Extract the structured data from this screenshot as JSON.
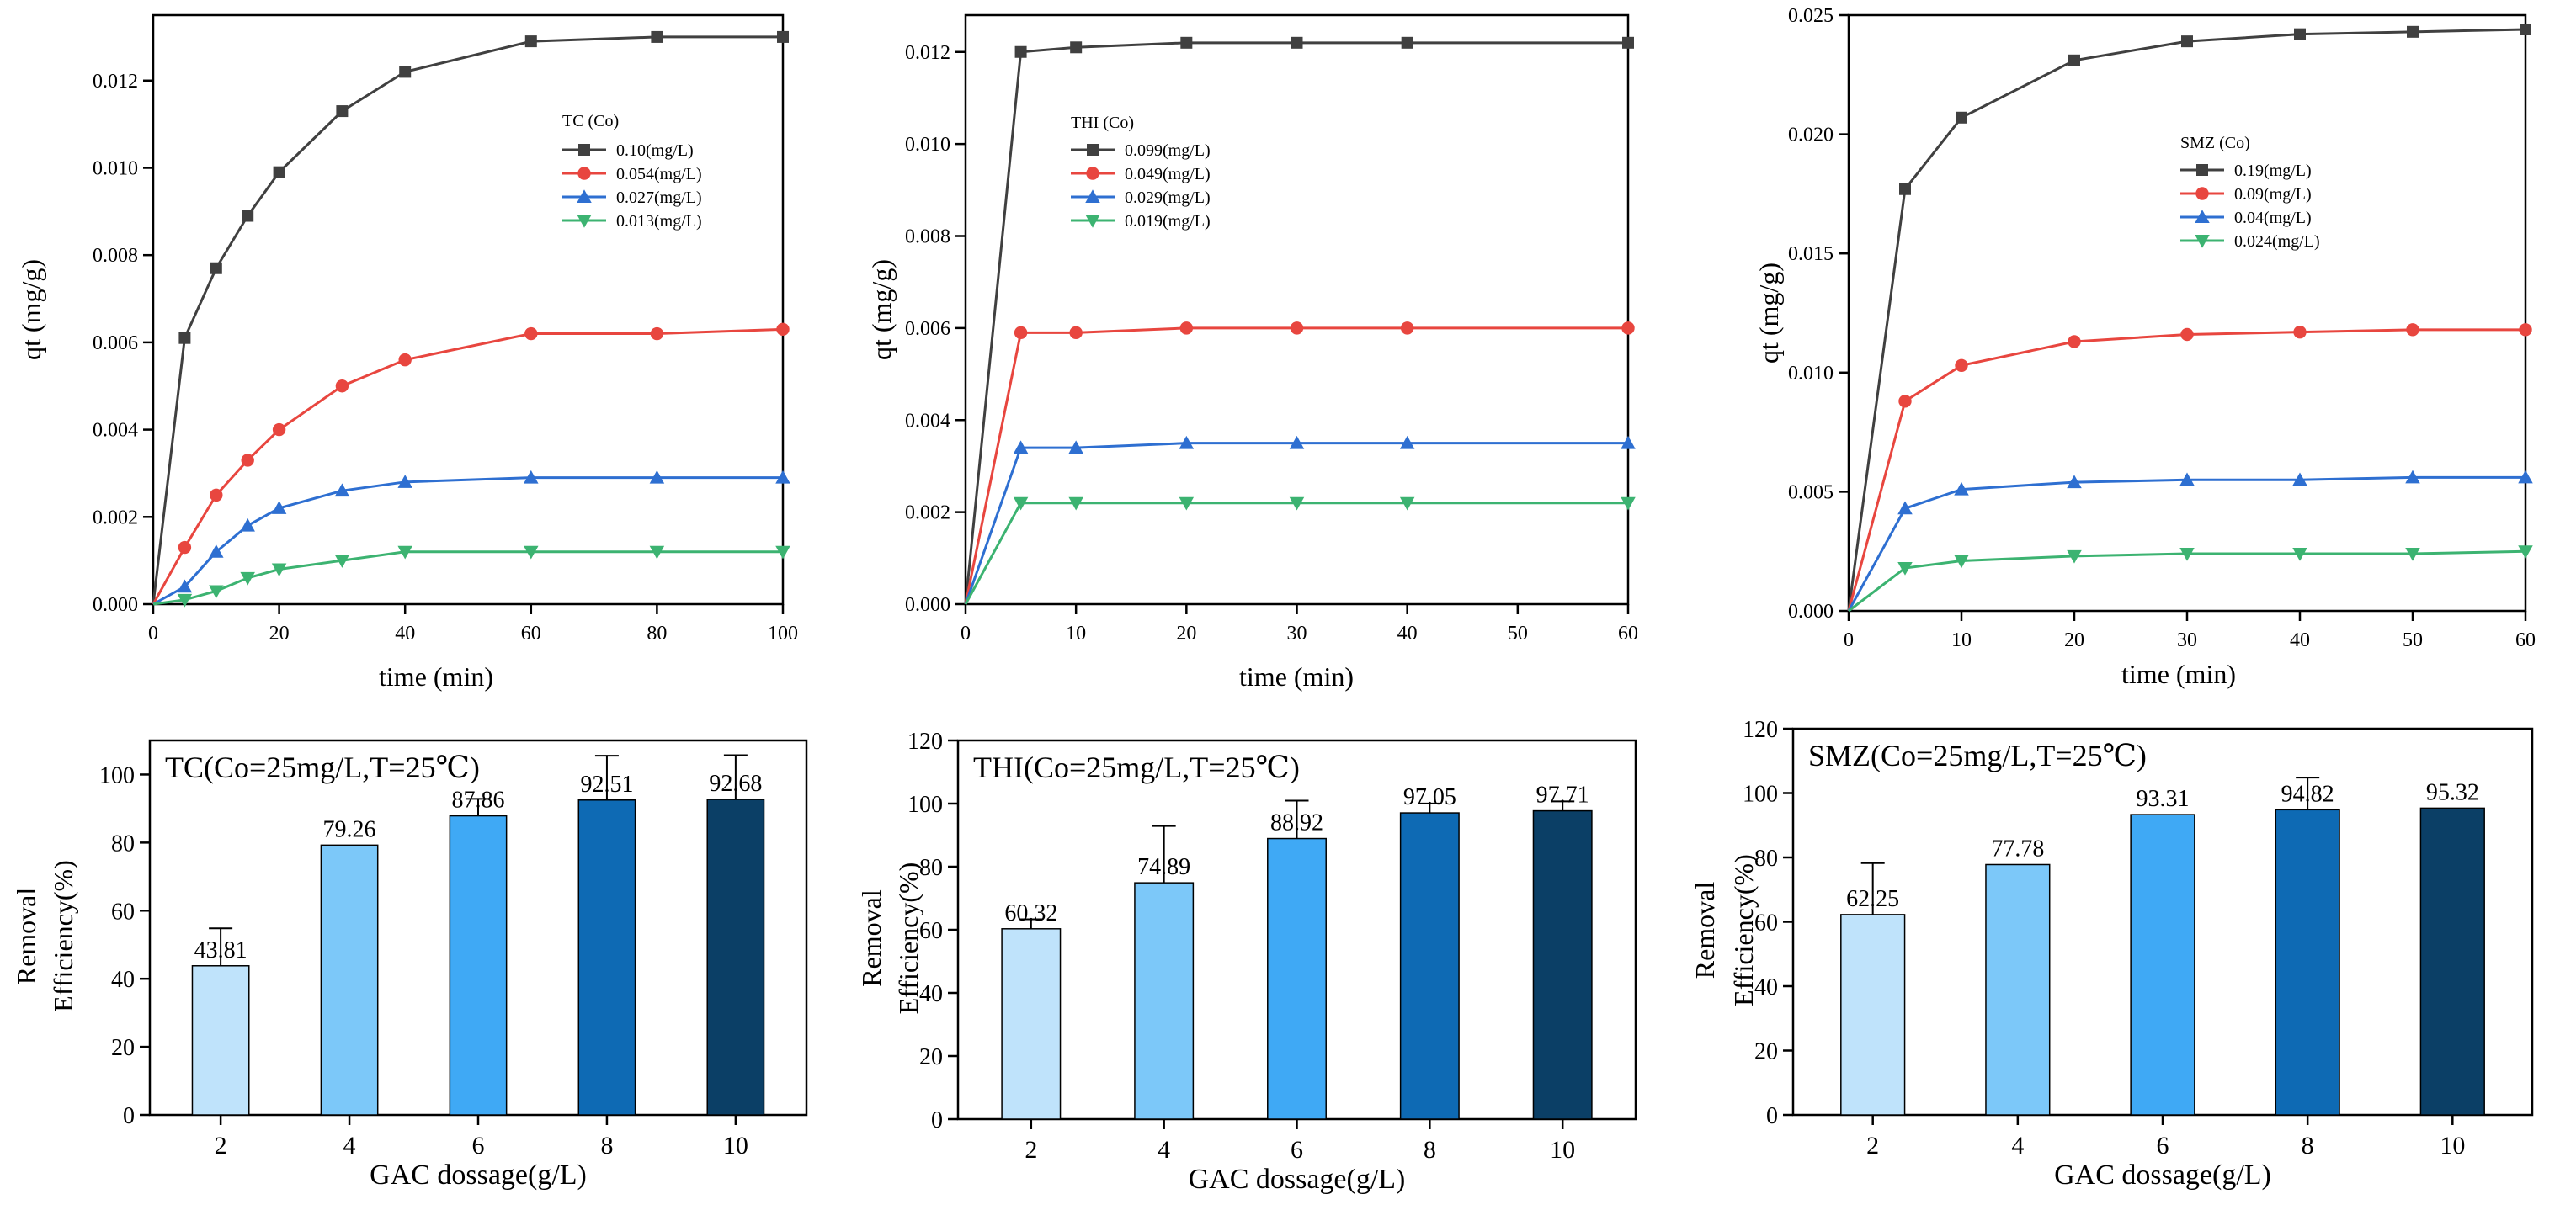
{
  "chart_data": [
    {
      "type": "line",
      "legend_title": "TC  (Co)",
      "legend_position": "top-right",
      "xlabel": "time  (min)",
      "ylabel": "qt  (mg/g)",
      "xlim": [
        0,
        100
      ],
      "ylim": [
        0,
        0.0135
      ],
      "x_ticks": [
        "0",
        "20",
        "40",
        "60",
        "80",
        "100"
      ],
      "y_ticks": [
        "0.000",
        "0.002",
        "0.004",
        "0.006",
        "0.008",
        "0.010",
        "0.012"
      ],
      "x": [
        0,
        5,
        10,
        15,
        20,
        30,
        40,
        60,
        80,
        100
      ],
      "series": [
        {
          "name": "0.10(mg/L)",
          "color": "#404040",
          "marker": "square",
          "values": [
            0,
            0.0061,
            0.0077,
            0.0089,
            0.0099,
            0.0113,
            0.0122,
            0.0129,
            0.013,
            0.013
          ]
        },
        {
          "name": "0.054(mg/L)",
          "color": "#e8463f",
          "marker": "circle",
          "values": [
            0,
            0.0013,
            0.0025,
            0.0033,
            0.004,
            0.005,
            0.0056,
            0.0062,
            0.0062,
            0.0063
          ]
        },
        {
          "name": "0.027(mg/L)",
          "color": "#2e6fd1",
          "marker": "triangle-up",
          "values": [
            0,
            0.0004,
            0.0012,
            0.0018,
            0.0022,
            0.0026,
            0.0028,
            0.0029,
            0.0029,
            0.0029
          ]
        },
        {
          "name": "0.013(mg/L)",
          "color": "#3cb371",
          "marker": "triangle-down",
          "values": [
            0,
            0.0001,
            0.0003,
            0.0006,
            0.0008,
            0.001,
            0.0012,
            0.0012,
            0.0012,
            0.0012
          ]
        }
      ]
    },
    {
      "type": "line",
      "legend_title": "THI  (Co)",
      "legend_position": "top-right",
      "xlabel": "time  (min)",
      "ylabel": "qt  (mg/g)",
      "xlim": [
        0,
        60
      ],
      "ylim": [
        0,
        0.0128
      ],
      "x_ticks": [
        "0",
        "10",
        "20",
        "30",
        "40",
        "50",
        "60"
      ],
      "y_ticks": [
        "0.000",
        "0.002",
        "0.004",
        "0.006",
        "0.008",
        "0.010",
        "0.012"
      ],
      "x": [
        0,
        5,
        10,
        20,
        30,
        40,
        60
      ],
      "series": [
        {
          "name": "0.099(mg/L)",
          "color": "#404040",
          "marker": "square",
          "values": [
            0,
            0.012,
            0.0121,
            0.0122,
            0.0122,
            0.0122,
            0.0122
          ]
        },
        {
          "name": "0.049(mg/L)",
          "color": "#e8463f",
          "marker": "circle",
          "values": [
            0,
            0.0059,
            0.0059,
            0.006,
            0.006,
            0.006,
            0.006
          ]
        },
        {
          "name": "0.029(mg/L)",
          "color": "#2e6fd1",
          "marker": "triangle-up",
          "values": [
            0,
            0.0034,
            0.0034,
            0.0035,
            0.0035,
            0.0035,
            0.0035
          ]
        },
        {
          "name": "0.019(mg/L)",
          "color": "#3cb371",
          "marker": "triangle-down",
          "values": [
            0,
            0.0022,
            0.0022,
            0.0022,
            0.0022,
            0.0022,
            0.0022
          ]
        }
      ]
    },
    {
      "type": "line",
      "legend_title": "SMZ  (Co)",
      "legend_position": "top-right",
      "xlabel": "time  (min)",
      "ylabel": "qt  (mg/g)",
      "xlim": [
        0,
        60
      ],
      "ylim": [
        0,
        0.025
      ],
      "x_ticks": [
        "0",
        "10",
        "20",
        "30",
        "40",
        "50",
        "60"
      ],
      "y_ticks": [
        "0.000",
        "0.005",
        "0.010",
        "0.015",
        "0.020",
        "0.025"
      ],
      "x": [
        0,
        5,
        10,
        20,
        30,
        40,
        50,
        60
      ],
      "series": [
        {
          "name": "0.19(mg/L)",
          "color": "#404040",
          "marker": "square",
          "values": [
            0,
            0.0177,
            0.0207,
            0.0231,
            0.0239,
            0.0242,
            0.0243,
            0.0244
          ]
        },
        {
          "name": "0.09(mg/L)",
          "color": "#e8463f",
          "marker": "circle",
          "values": [
            0,
            0.0088,
            0.0103,
            0.0113,
            0.0116,
            0.0117,
            0.0118,
            0.0118
          ]
        },
        {
          "name": "0.04(mg/L)",
          "color": "#2e6fd1",
          "marker": "triangle-up",
          "values": [
            0,
            0.0043,
            0.0051,
            0.0054,
            0.0055,
            0.0055,
            0.0056,
            0.0056
          ]
        },
        {
          "name": "0.024(mg/L)",
          "color": "#3cb371",
          "marker": "triangle-down",
          "values": [
            0,
            0.0018,
            0.0021,
            0.0023,
            0.0024,
            0.0024,
            0.0024,
            0.0025
          ]
        }
      ]
    },
    {
      "type": "bar",
      "title": "TC(Co=25mg/L,T=25℃)",
      "xlabel": "GAC dossage(g/L)",
      "ylabel_line1": "Removal",
      "ylabel_line2": "Efficiency(%)",
      "categories": [
        "2",
        "4",
        "6",
        "8",
        "10"
      ],
      "values": [
        43.81,
        79.26,
        87.86,
        92.51,
        92.68
      ],
      "labels": [
        "43.81",
        "79.26",
        "87.86",
        "92.51",
        "92.68"
      ],
      "errors": [
        11,
        0,
        5,
        13,
        13
      ],
      "ylim": [
        0,
        110
      ],
      "y_ticks": [
        "0",
        "20",
        "40",
        "60",
        "80",
        "100"
      ],
      "colors": [
        "#bfe3fb",
        "#7cc8f9",
        "#3fa9f5",
        "#0e6ab4",
        "#0b3f66"
      ]
    },
    {
      "type": "bar",
      "title": "THI(Co=25mg/L,T=25℃)",
      "xlabel": "GAC dossage(g/L)",
      "ylabel_line1": "Removal",
      "ylabel_line2": "Efficiency(%)",
      "categories": [
        "2",
        "4",
        "6",
        "8",
        "10"
      ],
      "values": [
        60.32,
        74.89,
        88.92,
        97.05,
        97.71
      ],
      "labels": [
        "60.32",
        "74.89",
        "88.92",
        "97.05",
        "97.71"
      ],
      "errors": [
        3,
        18,
        12,
        3,
        3
      ],
      "ylim": [
        0,
        120
      ],
      "y_ticks": [
        "0",
        "20",
        "40",
        "60",
        "80",
        "100",
        "120"
      ],
      "colors": [
        "#bfe3fb",
        "#7cc8f9",
        "#3fa9f5",
        "#0e6ab4",
        "#0b3f66"
      ]
    },
    {
      "type": "bar",
      "title": "SMZ(Co=25mg/L,T=25℃)",
      "xlabel": "GAC dossage(g/L)",
      "ylabel_line1": "Removal",
      "ylabel_line2": "Efficiency(%)",
      "categories": [
        "2",
        "4",
        "6",
        "8",
        "10"
      ],
      "values": [
        62.25,
        77.78,
        93.31,
        94.82,
        95.32
      ],
      "labels": [
        "62.25",
        "77.78",
        "93.31",
        "94.82",
        "95.32"
      ],
      "errors": [
        16,
        0,
        0,
        10,
        0
      ],
      "ylim": [
        0,
        120
      ],
      "y_ticks": [
        "0",
        "20",
        "40",
        "60",
        "80",
        "100",
        "120"
      ],
      "colors": [
        "#bfe3fb",
        "#7cc8f9",
        "#3fa9f5",
        "#0e6ab4",
        "#0b3f66"
      ]
    }
  ]
}
